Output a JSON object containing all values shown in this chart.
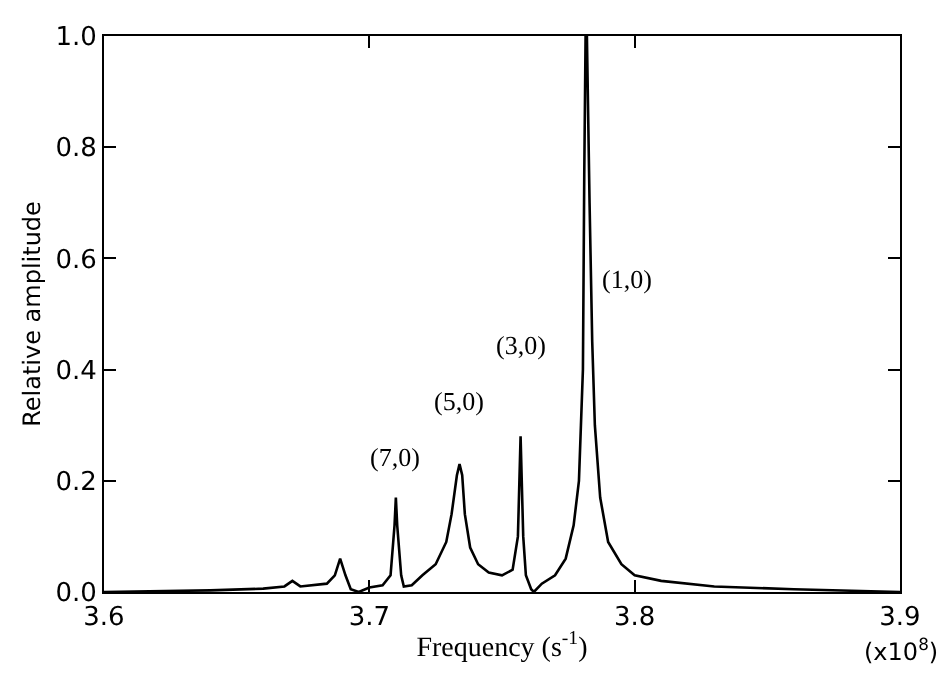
{
  "chart_data": {
    "type": "line",
    "xlabel": "Frequency (s$^{-1}$)",
    "ylabel": "Relative amplitude",
    "x": [
      3.6,
      3.64,
      3.66,
      3.668,
      3.671,
      3.674,
      3.684,
      3.687,
      3.689,
      3.691,
      3.693,
      3.696,
      3.7,
      3.705,
      3.708,
      3.7095,
      3.71,
      3.7105,
      3.712,
      3.713,
      3.716,
      3.72,
      3.725,
      3.729,
      3.731,
      3.733,
      3.734,
      3.735,
      3.736,
      3.738,
      3.741,
      3.745,
      3.75,
      3.754,
      3.756,
      3.757,
      3.758,
      3.759,
      3.761,
      3.762,
      3.765,
      3.77,
      3.774,
      3.777,
      3.779,
      3.7805,
      3.781,
      3.7815,
      3.782,
      3.783,
      3.784,
      3.785,
      3.787,
      3.79,
      3.795,
      3.8,
      3.81,
      3.83,
      3.86,
      3.9
    ],
    "series": [
      {
        "color": "#000000",
        "values": [
          0.0,
          0.003,
          0.006,
          0.01,
          0.02,
          0.01,
          0.015,
          0.03,
          0.06,
          0.03,
          0.005,
          0.0,
          0.008,
          0.012,
          0.03,
          0.12,
          0.17,
          0.12,
          0.03,
          0.01,
          0.012,
          0.03,
          0.05,
          0.09,
          0.14,
          0.21,
          0.23,
          0.21,
          0.14,
          0.08,
          0.05,
          0.035,
          0.03,
          0.04,
          0.1,
          0.28,
          0.1,
          0.03,
          0.005,
          0.0,
          0.015,
          0.03,
          0.06,
          0.12,
          0.2,
          0.4,
          0.75,
          1.0,
          1.0,
          0.7,
          0.45,
          0.3,
          0.17,
          0.09,
          0.05,
          0.03,
          0.02,
          0.01,
          0.005,
          0.0
        ]
      }
    ],
    "xlim": [
      3.6,
      3.9
    ],
    "xticks": [
      3.6,
      3.7,
      3.8,
      3.9
    ],
    "ylim": [
      0,
      1.0
    ],
    "yticks": [
      {
        "value": 0,
        "label": "0.0"
      },
      0.2,
      0.4,
      0.6,
      0.8,
      {
        "value": 1.0,
        "label": "1.0"
      }
    ],
    "marker": "none",
    "line_style": "solid",
    "annotations": [
      "(7,0)",
      "(5,0)",
      "(3,0)",
      "(1,0)",
      "(x10$^{8}$)"
    ]
  }
}
